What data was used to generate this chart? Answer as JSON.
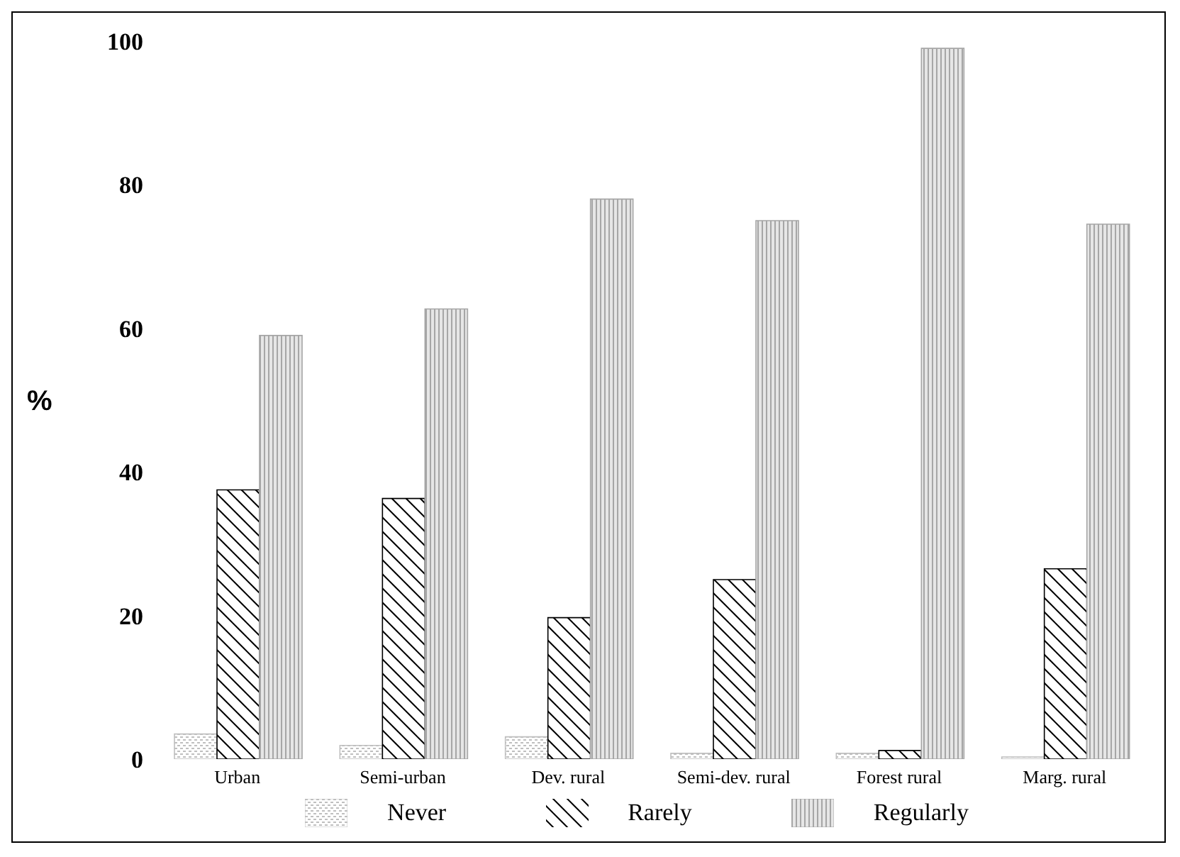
{
  "chart_data": {
    "type": "bar",
    "ylabel": "%",
    "categories": [
      "Urban",
      "Semi-urban",
      "Dev. rural",
      "Semi-dev. rural",
      "Forest rural",
      "Marg. rural"
    ],
    "series": [
      {
        "name": "Never",
        "color": "#bfbfbf",
        "values": [
          3.5,
          1.9,
          3.1,
          0.8,
          0.8,
          0.3
        ]
      },
      {
        "name": "Rarely",
        "color": "#000000",
        "values": [
          37.5,
          36.3,
          19.7,
          25,
          1.2,
          26.5
        ]
      },
      {
        "name": "Regularly",
        "color": "#a6a6a6",
        "values": [
          59,
          62.7,
          78,
          75,
          99,
          74.5
        ]
      }
    ],
    "ylim": [
      0,
      100
    ],
    "yticks": [
      0,
      20,
      40,
      60,
      80,
      100
    ],
    "grid": false,
    "legend": "bottom"
  }
}
